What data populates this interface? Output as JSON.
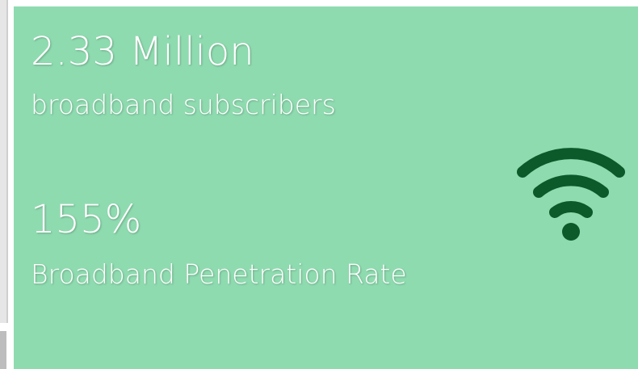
{
  "stats": [
    {
      "value": "2.33 Million",
      "label": "broadband subscribers"
    },
    {
      "value": "155%",
      "label": "Broadband Penetration Rate"
    }
  ]
}
